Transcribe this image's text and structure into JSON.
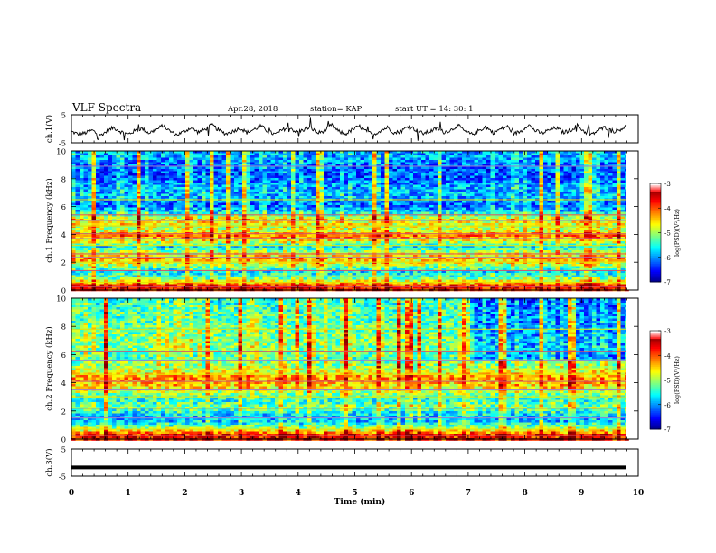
{
  "header": {
    "title": "VLF Spectra",
    "date": "Apr.28, 2018",
    "station": "station= KAP",
    "start": "start  UT =   14: 30: 1"
  },
  "chart_data": [
    {
      "type": "line",
      "panel": "ch1-waveform",
      "ylabel": "ch.1(V)",
      "yticks": [
        "5",
        "-5"
      ],
      "ylim": [
        -5,
        5
      ],
      "x_range_min": [
        0,
        9.85
      ],
      "approx_values_V": [
        -1.0,
        -2.0,
        -1.5,
        -0.5,
        -2.5,
        -1.0,
        0.5,
        -1.0,
        -2.0,
        -0.8,
        0.2,
        -1.5,
        -0.5,
        1.2,
        -0.8,
        -2.2,
        -1.0,
        0.4,
        -1.2,
        -0.3,
        1.5,
        -0.6,
        -1.8,
        -0.9,
        0.3,
        -1.4,
        -0.2,
        1.0,
        -1.0,
        -2.0,
        -0.5,
        0.8,
        -1.3,
        -0.4,
        0.6,
        -1.6,
        -0.7,
        1.4,
        -0.9,
        -1.9,
        -0.3,
        0.9,
        -1.1,
        -2.1,
        -0.6,
        0.5,
        -1.5,
        -0.8,
        1.1,
        -0.4,
        -1.7,
        -1.0,
        0.2,
        -1.2,
        -0.5,
        1.3,
        -0.9,
        -2.0,
        -0.6,
        0.7,
        -1.4,
        -0.2,
        0.9,
        -1.8,
        -0.8,
        1.6,
        -0.7,
        -1.6,
        -0.4,
        0.4,
        -1.3,
        -0.6,
        1.2,
        -1.0,
        -2.2,
        -0.5,
        0.6,
        -1.1,
        -0.3,
        1.0
      ]
    },
    {
      "type": "heatmap",
      "panel": "ch1-spectrogram",
      "ylabel": "ch.1 Frequency (kHz)",
      "ylim": [
        0,
        10
      ],
      "yticks": [
        "0",
        "2",
        "4",
        "6",
        "8",
        "10"
      ],
      "x_range_min": [
        0,
        9.85
      ],
      "colorbar": {
        "label": "log(PSD)(V²/Hz)",
        "ticks": [
          "-3",
          "-4",
          "-5",
          "-6",
          "-7"
        ],
        "range": [
          -7,
          -3
        ]
      },
      "freq_profile": [
        {
          "khz": 0.3,
          "level": 0.85
        },
        {
          "khz": 0.8,
          "level": 0.5
        },
        {
          "khz": 1.3,
          "level": 0.35
        },
        {
          "khz": 1.8,
          "level": 0.55
        },
        {
          "khz": 2.3,
          "level": 0.7
        },
        {
          "khz": 2.7,
          "level": 0.55
        },
        {
          "khz": 3.1,
          "level": 0.35
        },
        {
          "khz": 3.5,
          "level": 0.6
        },
        {
          "khz": 3.9,
          "level": 0.78
        },
        {
          "khz": 4.3,
          "level": 0.55
        },
        {
          "khz": 4.7,
          "level": 0.6
        },
        {
          "khz": 5.1,
          "level": 0.62
        },
        {
          "khz": 5.6,
          "level": 0.35
        },
        {
          "khz": 6.1,
          "level": 0.22
        },
        {
          "khz": 6.7,
          "level": 0.3
        },
        {
          "khz": 7.3,
          "level": 0.3
        },
        {
          "khz": 8.0,
          "level": 0.22
        },
        {
          "khz": 8.7,
          "level": 0.2
        },
        {
          "khz": 9.4,
          "level": 0.28
        },
        {
          "khz": 10.0,
          "level": 0.3
        }
      ],
      "lines_khz": [
        0.25,
        0.55,
        0.95,
        1.4,
        2.0,
        2.35,
        2.6,
        3.2,
        3.7,
        4.05,
        4.6,
        5.0,
        5.4,
        6.5,
        8.9
      ]
    },
    {
      "type": "heatmap",
      "panel": "ch2-spectrogram",
      "ylabel": "ch.2 Frequency (kHz)",
      "ylim": [
        0,
        10
      ],
      "yticks": [
        "0",
        "2",
        "4",
        "6",
        "8",
        "10"
      ],
      "x_range_min": [
        0,
        9.85
      ],
      "colorbar": {
        "label": "log(PSD)(V²/Hz)",
        "ticks": [
          "-3",
          "-4",
          "-5",
          "-6",
          "-7"
        ],
        "range": [
          -7,
          -3
        ]
      },
      "freq_profile": [
        {
          "khz": 0.3,
          "level": 0.85
        },
        {
          "khz": 0.8,
          "level": 0.5
        },
        {
          "khz": 1.3,
          "level": 0.3
        },
        {
          "khz": 1.8,
          "level": 0.35
        },
        {
          "khz": 2.3,
          "level": 0.5
        },
        {
          "khz": 2.8,
          "level": 0.38
        },
        {
          "khz": 3.2,
          "level": 0.5
        },
        {
          "khz": 3.6,
          "level": 0.62
        },
        {
          "khz": 4.0,
          "level": 0.68
        },
        {
          "khz": 4.4,
          "level": 0.72
        },
        {
          "khz": 4.8,
          "level": 0.58
        },
        {
          "khz": 5.3,
          "level": 0.5
        },
        {
          "khz": 5.8,
          "level": 0.45
        },
        {
          "khz": 6.4,
          "level": 0.5
        },
        {
          "khz": 7.0,
          "level": 0.5
        },
        {
          "khz": 7.6,
          "level": 0.48
        },
        {
          "khz": 8.3,
          "level": 0.46
        },
        {
          "khz": 9.0,
          "level": 0.45
        },
        {
          "khz": 9.6,
          "level": 0.42
        },
        {
          "khz": 10.0,
          "level": 0.4
        }
      ],
      "quiet_after_min": 7.0,
      "lines_khz": [
        0.25,
        0.7,
        1.5,
        2.2,
        3.0,
        3.5,
        4.1,
        4.6,
        5.6,
        6.2,
        7.8
      ]
    },
    {
      "type": "line",
      "panel": "ch3-waveform",
      "ylabel": "ch.3(V)",
      "yticks": [
        "5",
        "-5"
      ],
      "ylim": [
        -5,
        5
      ],
      "x_range_min": [
        0,
        9.85
      ],
      "constant_value_V": -1.8
    }
  ],
  "xaxis": {
    "label": "Time (min)",
    "ticks": [
      "0",
      "1",
      "2",
      "3",
      "4",
      "5",
      "6",
      "7",
      "8",
      "9",
      "10"
    ],
    "xlim": [
      0,
      10
    ]
  }
}
